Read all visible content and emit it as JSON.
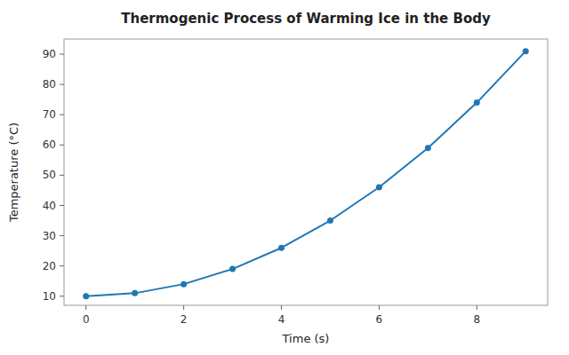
{
  "chart_data": {
    "type": "line",
    "title": "Thermogenic Process of Warming Ice in the Body",
    "xlabel": "Time (s)",
    "ylabel": "Temperature (°C)",
    "x": [
      0,
      1,
      2,
      3,
      4,
      5,
      6,
      7,
      8,
      9
    ],
    "values": [
      10,
      11,
      14,
      19,
      26,
      35,
      46,
      59,
      74,
      91
    ],
    "color": "#1f77b4",
    "marker": "circle",
    "xlim": [
      -0.45,
      9.45
    ],
    "ylim": [
      7,
      95
    ],
    "xticks": [
      0,
      2,
      4,
      6,
      8
    ],
    "yticks": [
      10,
      20,
      30,
      40,
      50,
      60,
      70,
      80,
      90
    ],
    "grid": false
  }
}
